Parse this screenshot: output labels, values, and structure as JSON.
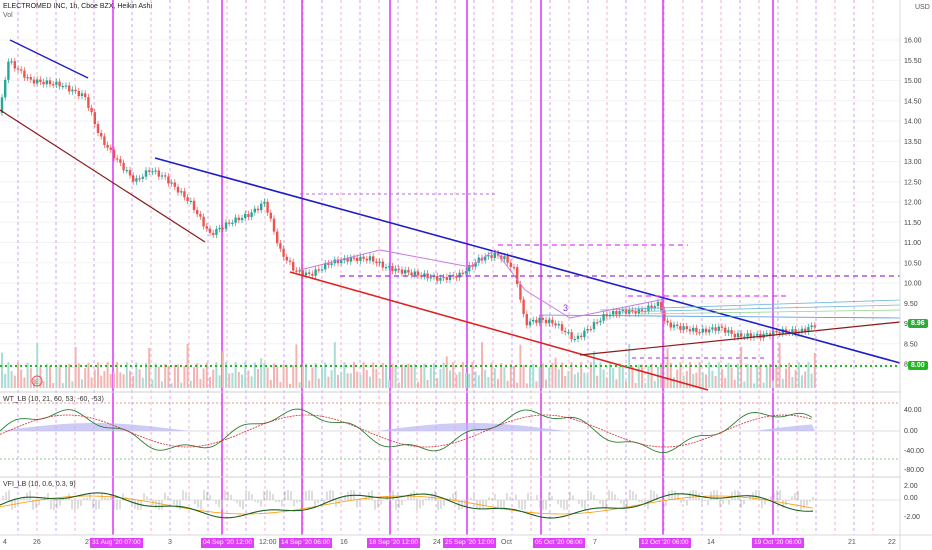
{
  "header": {
    "title": "ELECTROMED INC, 1h, Cboe BZX, Heikin Ashi",
    "sub": "Vol"
  },
  "currency": "USD",
  "price_axis": [
    "16.00",
    "15.50",
    "15.00",
    "14.50",
    "14.00",
    "13.50",
    "13.00",
    "12.50",
    "12.00",
    "11.50",
    "11.00",
    "10.50",
    "10.00",
    "9.50",
    "9.00",
    "8.50",
    "8.00"
  ],
  "price_badge": {
    "value": "8.96",
    "color": "#2eaa3a"
  },
  "support_badge": {
    "value": "8.00",
    "color": "#1fb81f"
  },
  "wave_label": "3",
  "osc1": {
    "title": "WT_LB (10, 21, 60, 53, -60, -53)",
    "axis": [
      "40.00",
      "0.00",
      "-40.00",
      "-80.00"
    ]
  },
  "osc2": {
    "title": "VFI_LB (10, 0.6, 0.3, 9)",
    "axis": [
      "2.00",
      "0.00",
      "-2.00"
    ]
  },
  "time_axis": [
    {
      "text": "4",
      "hl": false
    },
    {
      "text": "26",
      "hl": false
    },
    {
      "text": "27",
      "hl": false
    },
    {
      "text": "31 Aug '20  07:00",
      "hl": true
    },
    {
      "text": "3",
      "hl": false
    },
    {
      "text": "04 Sep '20  12:00",
      "hl": true
    },
    {
      "text": "12:00",
      "hl": false
    },
    {
      "text": "14 Sep '20  06:00",
      "hl": true
    },
    {
      "text": "16",
      "hl": false
    },
    {
      "text": "18 Sep '20  12:00",
      "hl": true
    },
    {
      "text": "24",
      "hl": false
    },
    {
      "text": "25 Sep '20  12:00",
      "hl": true
    },
    {
      "text": "Oct",
      "hl": false
    },
    {
      "text": "05 Oct '20  06:00",
      "hl": true
    },
    {
      "text": "7",
      "hl": false
    },
    {
      "text": "12 Oct '20  06:00",
      "hl": true
    },
    {
      "text": "14",
      "hl": false
    },
    {
      "text": "19 Oct '20  06:00",
      "hl": true
    },
    {
      "text": "21",
      "hl": false
    },
    {
      "text": "22",
      "hl": false
    }
  ],
  "colors": {
    "up": "#26a69a",
    "down": "#ef5350",
    "vline": "#e040fb",
    "trend_blue": "#1e1ec8",
    "trend_red": "#e02020",
    "trend_dark": "#8b1a1a",
    "support": "#1fb81f"
  }
}
